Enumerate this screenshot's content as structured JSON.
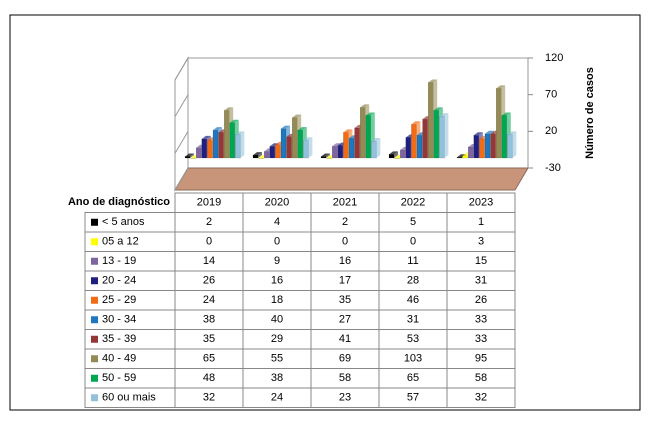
{
  "chart_data": {
    "type": "bar3d",
    "y_axis_label": "Número de casos",
    "table_header": "Ano de diagnóstico",
    "categories": [
      "2019",
      "2020",
      "2021",
      "2022",
      "2023"
    ],
    "ylim": [
      -30,
      120
    ],
    "yticks": [
      -30,
      20,
      70,
      120
    ],
    "series": [
      {
        "name": "< 5 anos",
        "color": "#000000",
        "values": [
          2,
          4,
          2,
          5,
          1
        ]
      },
      {
        "name": "05 a 12",
        "color": "#ffff00",
        "values": [
          0,
          0,
          0,
          0,
          3
        ]
      },
      {
        "name": "13 - 19",
        "color": "#7f64a2",
        "values": [
          14,
          9,
          16,
          11,
          15
        ]
      },
      {
        "name": "20 - 24",
        "color": "#1f1f7f",
        "values": [
          26,
          16,
          17,
          28,
          31
        ]
      },
      {
        "name": "25 - 29",
        "color": "#f26b15",
        "values": [
          24,
          18,
          35,
          46,
          26
        ]
      },
      {
        "name": "30 - 34",
        "color": "#1f77c0",
        "values": [
          38,
          40,
          27,
          31,
          33
        ]
      },
      {
        "name": "35 - 39",
        "color": "#953735",
        "values": [
          35,
          29,
          41,
          53,
          33
        ]
      },
      {
        "name": "40 - 49",
        "color": "#948a54",
        "values": [
          65,
          55,
          69,
          103,
          95
        ]
      },
      {
        "name": "50 - 59",
        "color": "#00a651",
        "values": [
          48,
          38,
          58,
          65,
          58
        ]
      },
      {
        "name": "60 ou mais",
        "color": "#93c1dc",
        "values": [
          32,
          24,
          23,
          57,
          32
        ]
      }
    ]
  }
}
